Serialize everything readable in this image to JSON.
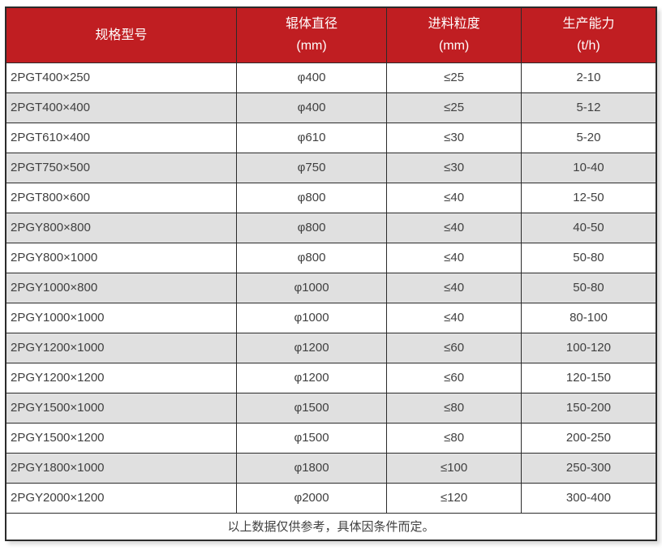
{
  "chart_data": {
    "type": "table",
    "title": "",
    "columns": [
      {
        "label": "规格型号",
        "unit": ""
      },
      {
        "label": "辊体直径",
        "unit": "(mm)"
      },
      {
        "label": "进料粒度",
        "unit": "(mm)"
      },
      {
        "label": "生产能力",
        "unit": "(t/h)"
      }
    ],
    "rows": [
      [
        "2PGT400×250",
        "φ400",
        "≤25",
        "2-10"
      ],
      [
        "2PGT400×400",
        "φ400",
        "≤25",
        "5-12"
      ],
      [
        "2PGT610×400",
        "φ610",
        "≤30",
        "5-20"
      ],
      [
        "2PGT750×500",
        "φ750",
        "≤30",
        "10-40"
      ],
      [
        "2PGT800×600",
        "φ800",
        "≤40",
        "12-50"
      ],
      [
        "2PGY800×800",
        "φ800",
        "≤40",
        "40-50"
      ],
      [
        "2PGY800×1000",
        "φ800",
        "≤40",
        "50-80"
      ],
      [
        "2PGY1000×800",
        "φ1000",
        "≤40",
        "50-80"
      ],
      [
        "2PGY1000×1000",
        "φ1000",
        "≤40",
        "80-100"
      ],
      [
        "2PGY1200×1000",
        "φ1200",
        "≤60",
        "100-120"
      ],
      [
        "2PGY1200×1200",
        "φ1200",
        "≤60",
        "120-150"
      ],
      [
        "2PGY1500×1000",
        "φ1500",
        "≤80",
        "150-200"
      ],
      [
        "2PGY1500×1200",
        "φ1500",
        "≤80",
        "200-250"
      ],
      [
        "2PGY1800×1000",
        "φ1800",
        "≤100",
        "250-300"
      ],
      [
        "2PGY2000×1200",
        "φ2000",
        "≤120",
        "300-400"
      ]
    ],
    "footnote": "以上数据仅供参考，具体因条件而定。",
    "layout": {
      "grid": true,
      "striped": true,
      "striped_rows": "even",
      "header_lines": 2
    }
  },
  "colors": {
    "header_bg": "#c01e22",
    "header_text": "#ffffff",
    "stripe_bg": "#e0e0e0",
    "row_bg": "#ffffff",
    "border": "#2b2b2b",
    "cell_text": "#404040"
  },
  "cell_names": [
    "model-cell",
    "diameter-cell",
    "feed-size-cell",
    "capacity-cell"
  ]
}
